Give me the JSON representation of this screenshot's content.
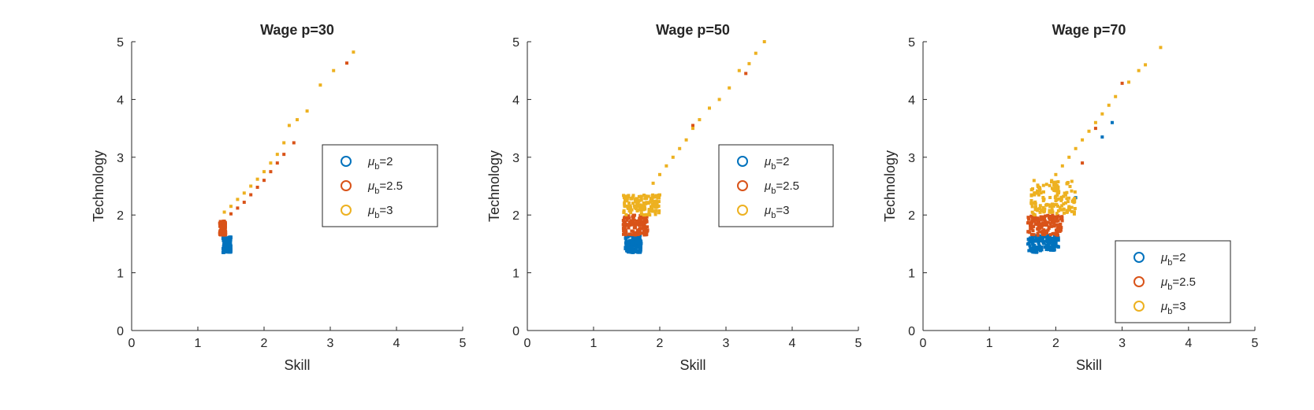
{
  "figure": {
    "background": "#ffffff",
    "series_colors": [
      "#0072BD",
      "#D95319",
      "#EDB120"
    ]
  },
  "chart_data": [
    {
      "type": "scatter",
      "title": "Wage p=30",
      "xlabel": "Skill",
      "ylabel": "Technology",
      "xlim": [
        0,
        5
      ],
      "ylim": [
        0,
        5
      ],
      "xticks": [
        0,
        1,
        2,
        3,
        4,
        5
      ],
      "yticks": [
        0,
        1,
        2,
        3,
        4,
        5
      ],
      "grid": false,
      "legend": {
        "position": "east",
        "entries": [
          {
            "symbol": "μ",
            "sub": "b",
            "rest": "=2"
          },
          {
            "symbol": "μ",
            "sub": "b",
            "rest": "=2.5"
          },
          {
            "symbol": "μ",
            "sub": "b",
            "rest": "=3"
          }
        ]
      },
      "series": [
        {
          "color": "#0072BD",
          "regions": [
            {
              "x": [
                1.38,
                1.5
              ],
              "y": [
                1.35,
                1.62
              ]
            }
          ],
          "points": []
        },
        {
          "color": "#D95319",
          "regions": [
            {
              "x": [
                1.33,
                1.42
              ],
              "y": [
                1.65,
                1.9
              ]
            }
          ],
          "points": [
            [
              1.5,
              2.02
            ],
            [
              1.6,
              2.12
            ],
            [
              1.7,
              2.22
            ],
            [
              1.8,
              2.35
            ],
            [
              1.9,
              2.48
            ],
            [
              2.0,
              2.6
            ],
            [
              2.1,
              2.75
            ],
            [
              2.2,
              2.9
            ],
            [
              2.3,
              3.05
            ],
            [
              2.45,
              3.25
            ],
            [
              3.25,
              4.63
            ]
          ]
        },
        {
          "color": "#EDB120",
          "regions": [],
          "points": [
            [
              1.4,
              2.05
            ],
            [
              1.5,
              2.15
            ],
            [
              1.6,
              2.27
            ],
            [
              1.7,
              2.38
            ],
            [
              1.8,
              2.5
            ],
            [
              1.9,
              2.62
            ],
            [
              2.0,
              2.75
            ],
            [
              2.1,
              2.9
            ],
            [
              2.2,
              3.05
            ],
            [
              2.3,
              3.25
            ],
            [
              2.38,
              3.55
            ],
            [
              2.5,
              3.65
            ],
            [
              2.65,
              3.8
            ],
            [
              2.85,
              4.25
            ],
            [
              3.05,
              4.5
            ],
            [
              3.35,
              4.82
            ]
          ]
        }
      ]
    },
    {
      "type": "scatter",
      "title": "Wage p=50",
      "xlabel": "Skill",
      "ylabel": "Technology",
      "xlim": [
        0,
        5
      ],
      "ylim": [
        0,
        5
      ],
      "xticks": [
        0,
        1,
        2,
        3,
        4,
        5
      ],
      "yticks": [
        0,
        1,
        2,
        3,
        4,
        5
      ],
      "grid": false,
      "legend": {
        "position": "east",
        "entries": [
          {
            "symbol": "μ",
            "sub": "b",
            "rest": "=2"
          },
          {
            "symbol": "μ",
            "sub": "b",
            "rest": "=2.5"
          },
          {
            "symbol": "μ",
            "sub": "b",
            "rest": "=3"
          }
        ]
      },
      "series": [
        {
          "color": "#0072BD",
          "regions": [
            {
              "x": [
                1.48,
                1.72
              ],
              "y": [
                1.35,
                1.65
              ]
            }
          ],
          "points": []
        },
        {
          "color": "#D95319",
          "regions": [
            {
              "x": [
                1.45,
                1.82
              ],
              "y": [
                1.65,
                2.0
              ]
            }
          ],
          "points": [
            [
              2.5,
              3.55
            ],
            [
              3.3,
              4.45
            ]
          ]
        },
        {
          "color": "#EDB120",
          "regions": [
            {
              "x": [
                1.45,
                2.0
              ],
              "y": [
                2.0,
                2.35
              ]
            }
          ],
          "points": [
            [
              1.9,
              2.55
            ],
            [
              2.0,
              2.7
            ],
            [
              2.1,
              2.85
            ],
            [
              2.2,
              3.0
            ],
            [
              2.3,
              3.15
            ],
            [
              2.4,
              3.3
            ],
            [
              2.5,
              3.5
            ],
            [
              2.6,
              3.65
            ],
            [
              2.75,
              3.85
            ],
            [
              2.9,
              4.0
            ],
            [
              3.05,
              4.2
            ],
            [
              3.2,
              4.5
            ],
            [
              3.35,
              4.62
            ],
            [
              3.45,
              4.8
            ],
            [
              3.58,
              5.0
            ]
          ]
        }
      ]
    },
    {
      "type": "scatter",
      "title": "Wage p=70",
      "xlabel": "Skill",
      "ylabel": "Technology",
      "xlim": [
        0,
        5
      ],
      "ylim": [
        0,
        5
      ],
      "xticks": [
        0,
        1,
        2,
        3,
        4,
        5
      ],
      "yticks": [
        0,
        1,
        2,
        3,
        4,
        5
      ],
      "grid": false,
      "legend": {
        "position": "southeast",
        "entries": [
          {
            "symbol": "μ",
            "sub": "b",
            "rest": "=2"
          },
          {
            "symbol": "μ",
            "sub": "b",
            "rest": "=2.5"
          },
          {
            "symbol": "μ",
            "sub": "b",
            "rest": "=3"
          }
        ]
      },
      "series": [
        {
          "color": "#0072BD",
          "regions": [
            {
              "x": [
                1.58,
                2.05
              ],
              "y": [
                1.35,
                1.65
              ]
            }
          ],
          "points": [
            [
              2.3,
              2.3
            ],
            [
              2.7,
              3.35
            ],
            [
              2.85,
              3.6
            ]
          ]
        },
        {
          "color": "#D95319",
          "regions": [
            {
              "x": [
                1.58,
                2.1
              ],
              "y": [
                1.65,
                2.0
              ]
            }
          ],
          "points": [
            [
              2.4,
              2.9
            ],
            [
              2.6,
              3.5
            ],
            [
              3.0,
              4.28
            ]
          ]
        },
        {
          "color": "#EDB120",
          "regions": [
            {
              "x": [
                1.62,
                2.3
              ],
              "y": [
                2.0,
                2.6
              ]
            }
          ],
          "points": [
            [
              2.0,
              2.7
            ],
            [
              2.1,
              2.85
            ],
            [
              2.2,
              3.0
            ],
            [
              2.3,
              3.15
            ],
            [
              2.4,
              3.3
            ],
            [
              2.5,
              3.45
            ],
            [
              2.6,
              3.6
            ],
            [
              2.7,
              3.75
            ],
            [
              2.8,
              3.9
            ],
            [
              2.9,
              4.05
            ],
            [
              3.1,
              4.3
            ],
            [
              3.25,
              4.5
            ],
            [
              3.35,
              4.6
            ],
            [
              3.58,
              4.9
            ]
          ]
        }
      ]
    }
  ]
}
